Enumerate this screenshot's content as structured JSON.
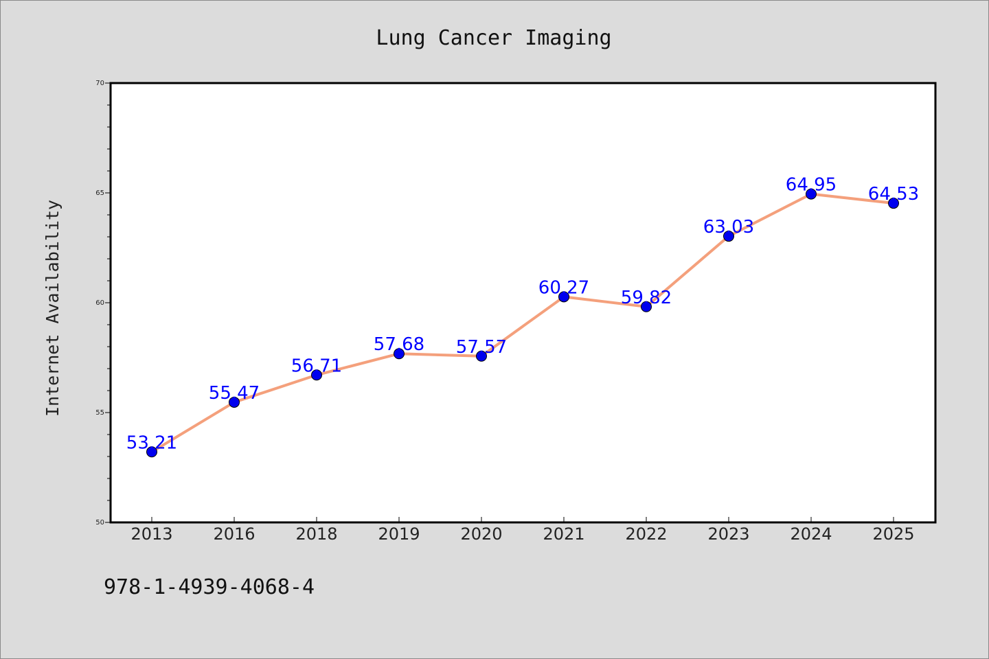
{
  "chart_data": {
    "type": "line",
    "title": "Lung Cancer Imaging",
    "xlabel": "",
    "ylabel": "Internet Availability",
    "ylim": [
      50,
      70
    ],
    "yticks": [
      50,
      55,
      60,
      65,
      70
    ],
    "categories": [
      "2013",
      "2016",
      "2018",
      "2019",
      "2020",
      "2021",
      "2022",
      "2023",
      "2024",
      "2025"
    ],
    "series": [
      {
        "values": [
          53.21,
          55.47,
          56.71,
          57.68,
          57.57,
          60.27,
          59.82,
          63.03,
          64.95,
          64.53
        ],
        "labels": [
          "53.21",
          "55.47",
          "56.71",
          "57.68",
          "57.57",
          "60.27",
          "59.82",
          "63.03",
          "64.95",
          "64.53"
        ],
        "line_color": "#f4a07c",
        "marker_color": "#0000ee",
        "label_color": "#0000ff"
      }
    ],
    "grid": false,
    "legend": "none"
  },
  "footer_text": "978-1-4939-4068-4"
}
